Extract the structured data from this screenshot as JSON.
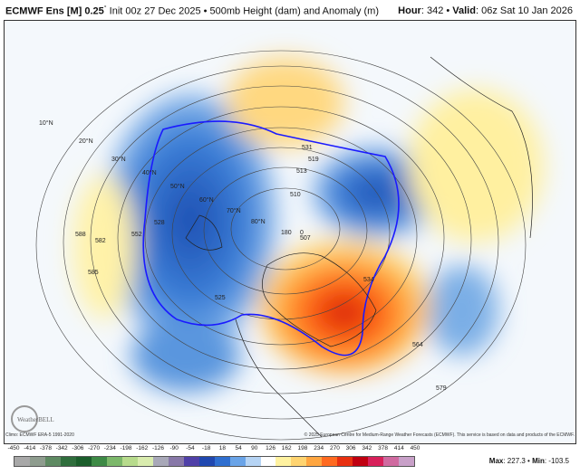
{
  "header": {
    "model": "ECMWF Ens [M] 0.25",
    "degree": "°",
    "description": "Init 00z 27 Dec 2025 • 500mb Height (dam) and Anomaly (m)",
    "hour_label": "Hour",
    "hour": ": 342 • ",
    "valid_label": "Valid",
    "valid": ": 06z Sat 10 Jan 2026"
  },
  "map": {
    "lat_labels": [
      "10°N",
      "20°N",
      "30°N",
      "40°N",
      "50°N",
      "60°N",
      "70°N",
      "80°N"
    ],
    "lon_labels": [
      "180",
      "0"
    ],
    "contour_labels": [
      "588",
      "582",
      "585",
      "552",
      "528",
      "531",
      "519",
      "513",
      "507",
      "534",
      "564",
      "579",
      "525",
      "510"
    ],
    "logo": "WeatherBELL"
  },
  "footer": {
    "climo": "Climo: ECMWF ERA-5 1991-2020",
    "copyright": "© 2025 European Centre for Medium-Range Weather Forecasts (ECMWF). This service is based on data and products of the ECMWF."
  },
  "colorbar": {
    "ticks": [
      "-450",
      "-414",
      "-378",
      "-342",
      "-306",
      "-270",
      "-234",
      "-198",
      "-162",
      "-126",
      "-90",
      "-54",
      "-18",
      "18",
      "54",
      "90",
      "126",
      "162",
      "198",
      "234",
      "270",
      "306",
      "342",
      "378",
      "414",
      "450"
    ],
    "colors": [
      "#a8a8a8",
      "#8e9c8e",
      "#5e8a62",
      "#2f6e3c",
      "#1b5e2b",
      "#3d8a45",
      "#7cb86a",
      "#b7db8c",
      "#d9ecae",
      "#a8a8b8",
      "#8878a8",
      "#5040a8",
      "#2048b0",
      "#2f6fd0",
      "#6aa4e8",
      "#b6d4f4",
      "#ffffff",
      "#fff2a0",
      "#ffd470",
      "#ffa640",
      "#ff6a20",
      "#e83010",
      "#c00010",
      "#d8205a",
      "#d06aa0",
      "#c8a0c8"
    ],
    "max_label": "Max",
    "max": ": 227.3 • ",
    "min_label": "Min",
    "min": ": -103.5"
  },
  "colors": {
    "contour_552": "#1a1aff",
    "positive": "#ff5a10",
    "negative": "#2a6ad0"
  }
}
